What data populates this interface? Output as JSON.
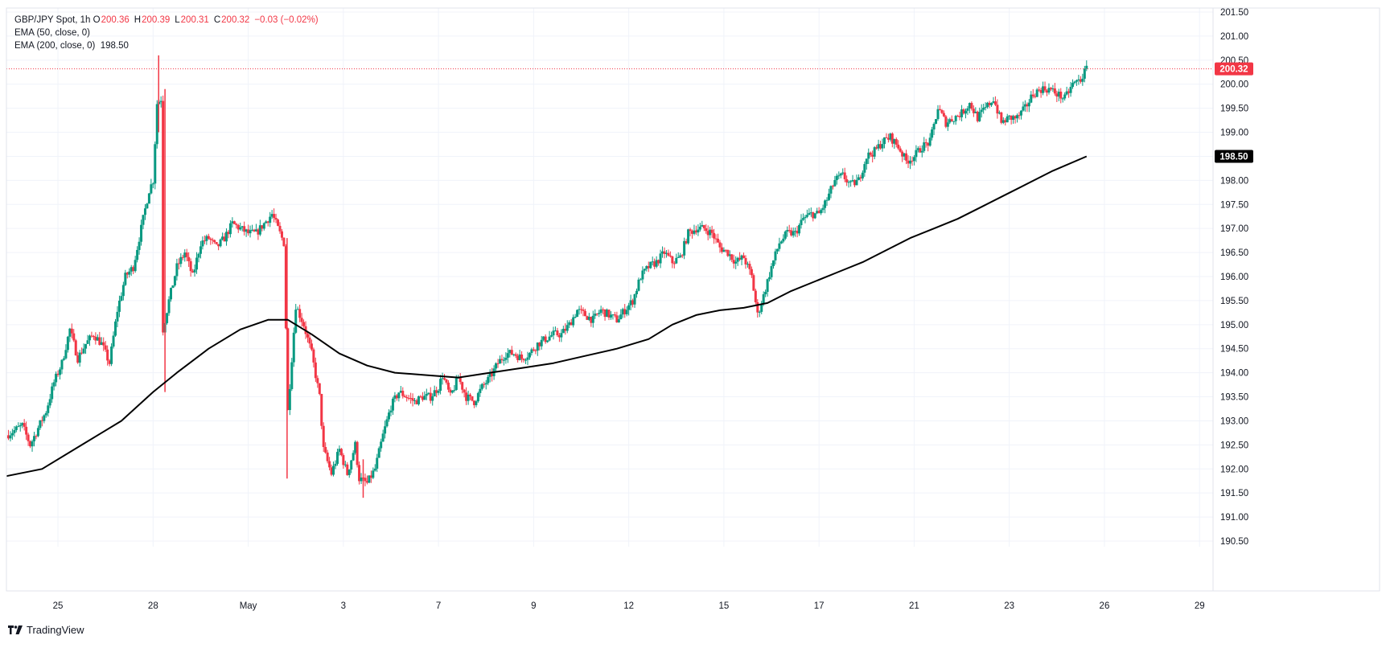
{
  "legend": {
    "symbol": "GBP/JPY Spot",
    "interval": "1h",
    "open_label": "O",
    "open": "200.36",
    "high_label": "H",
    "high": "200.39",
    "low_label": "L",
    "low": "200.31",
    "close_label": "C",
    "close": "200.32",
    "change": "−0.03 (−0.02%)",
    "ema50": "EMA (50, close, 0)",
    "ema200": "EMA (200, close, 0)",
    "ema200_value": "198.50"
  },
  "price_badges": {
    "last": "200.32",
    "ema200": "198.50"
  },
  "branding": {
    "name": "TradingView"
  },
  "colors": {
    "up": "#089981",
    "down": "#f23645",
    "ema": "#000000",
    "grid": "#f0f3fa"
  },
  "chart_data": {
    "type": "candlestick",
    "interval": "1h",
    "y_ticks": [
      "190.50",
      "191.00",
      "191.50",
      "192.00",
      "192.50",
      "193.00",
      "193.50",
      "194.00",
      "194.50",
      "195.00",
      "195.50",
      "196.00",
      "196.50",
      "197.00",
      "197.50",
      "198.00",
      "198.50",
      "199.00",
      "199.50",
      "200.00",
      "200.50",
      "201.00",
      "201.50"
    ],
    "ylim": [
      190.5,
      201.5
    ],
    "x_ticks": [
      {
        "label": "25",
        "hours": 39
      },
      {
        "label": "28",
        "hours": 63
      },
      {
        "label": "May",
        "hours": 87
      },
      {
        "label": "3",
        "hours": 111
      },
      {
        "label": "7",
        "hours": 135
      },
      {
        "label": "9",
        "hours": 159
      },
      {
        "label": "12",
        "hours": 183
      },
      {
        "label": "15",
        "hours": 207
      },
      {
        "label": "17",
        "hours": 231
      },
      {
        "label": "21",
        "hours": 255
      },
      {
        "label": "23",
        "hours": 279
      },
      {
        "label": "26",
        "hours": 303
      },
      {
        "label": "29",
        "hours": 327
      }
    ],
    "x_range_hours": [
      26,
      330
    ],
    "close_path": [
      [
        26,
        192.7
      ],
      [
        30,
        192.9
      ],
      [
        32,
        192.5
      ],
      [
        36,
        193.2
      ],
      [
        38,
        193.8
      ],
      [
        40,
        194.2
      ],
      [
        42,
        194.9
      ],
      [
        44,
        194.3
      ],
      [
        46,
        194.6
      ],
      [
        48,
        194.8
      ],
      [
        50,
        194.6
      ],
      [
        52,
        194.2
      ],
      [
        54,
        195.3
      ],
      [
        56,
        196.0
      ],
      [
        58,
        196.2
      ],
      [
        60,
        197.0
      ],
      [
        62,
        197.8
      ],
      [
        63,
        198.0
      ],
      [
        64,
        199.6
      ],
      [
        65,
        199.7
      ],
      [
        65.5,
        194.9
      ],
      [
        67,
        195.5
      ],
      [
        69,
        196.2
      ],
      [
        71,
        196.5
      ],
      [
        73,
        196.0
      ],
      [
        75,
        196.7
      ],
      [
        77,
        196.8
      ],
      [
        79,
        196.6
      ],
      [
        81,
        196.8
      ],
      [
        83,
        197.1
      ],
      [
        85,
        197.0
      ],
      [
        87,
        196.9
      ],
      [
        89,
        196.9
      ],
      [
        91,
        197.1
      ],
      [
        93,
        197.3
      ],
      [
        95,
        196.9
      ],
      [
        96,
        196.7
      ],
      [
        97,
        193.2
      ],
      [
        99,
        195.4
      ],
      [
        101,
        195.0
      ],
      [
        103,
        194.4
      ],
      [
        105,
        193.5
      ],
      [
        106,
        192.4
      ],
      [
        108,
        191.9
      ],
      [
        110,
        192.4
      ],
      [
        112,
        191.9
      ],
      [
        114,
        192.5
      ],
      [
        115,
        191.8
      ],
      [
        117,
        191.7
      ],
      [
        119,
        192.0
      ],
      [
        121,
        192.7
      ],
      [
        123,
        193.3
      ],
      [
        125,
        193.6
      ],
      [
        127,
        193.5
      ],
      [
        129,
        193.4
      ],
      [
        131,
        193.5
      ],
      [
        133,
        193.5
      ],
      [
        135,
        193.7
      ],
      [
        136,
        193.95
      ],
      [
        138,
        193.5
      ],
      [
        140,
        193.9
      ],
      [
        142,
        193.5
      ],
      [
        144,
        193.4
      ],
      [
        146,
        193.7
      ],
      [
        148,
        193.9
      ],
      [
        150,
        194.2
      ],
      [
        152,
        194.4
      ],
      [
        154,
        194.4
      ],
      [
        156,
        194.3
      ],
      [
        158,
        194.4
      ],
      [
        160,
        194.6
      ],
      [
        162,
        194.7
      ],
      [
        164,
        194.8
      ],
      [
        166,
        194.8
      ],
      [
        168,
        195.0
      ],
      [
        170,
        195.3
      ],
      [
        172,
        195.2
      ],
      [
        174,
        195.1
      ],
      [
        176,
        195.3
      ],
      [
        178,
        195.2
      ],
      [
        180,
        195.1
      ],
      [
        182,
        195.3
      ],
      [
        184,
        195.5
      ],
      [
        186,
        196.0
      ],
      [
        188,
        196.2
      ],
      [
        190,
        196.3
      ],
      [
        192,
        196.5
      ],
      [
        194,
        196.3
      ],
      [
        196,
        196.4
      ],
      [
        198,
        196.9
      ],
      [
        200,
        197.0
      ],
      [
        202,
        197.0
      ],
      [
        204,
        196.9
      ],
      [
        206,
        196.6
      ],
      [
        208,
        196.5
      ],
      [
        210,
        196.3
      ],
      [
        212,
        196.4
      ],
      [
        214,
        196.0
      ],
      [
        215.5,
        195.2
      ],
      [
        217,
        195.6
      ],
      [
        219,
        196.2
      ],
      [
        221,
        196.7
      ],
      [
        223,
        196.9
      ],
      [
        225,
        196.9
      ],
      [
        227,
        197.2
      ],
      [
        229,
        197.3
      ],
      [
        231,
        197.3
      ],
      [
        233,
        197.6
      ],
      [
        235,
        198.0
      ],
      [
        237,
        198.1
      ],
      [
        239,
        197.9
      ],
      [
        241,
        198.0
      ],
      [
        243,
        198.5
      ],
      [
        245,
        198.6
      ],
      [
        247,
        198.8
      ],
      [
        249,
        198.9
      ],
      [
        251,
        198.7
      ],
      [
        253,
        198.4
      ],
      [
        255,
        198.5
      ],
      [
        257,
        198.7
      ],
      [
        259,
        198.8
      ],
      [
        261,
        199.5
      ],
      [
        263,
        199.2
      ],
      [
        265,
        199.3
      ],
      [
        267,
        199.4
      ],
      [
        269,
        199.6
      ],
      [
        271,
        199.3
      ],
      [
        273,
        199.5
      ],
      [
        275,
        199.7
      ],
      [
        277,
        199.2
      ],
      [
        279,
        199.3
      ],
      [
        281,
        199.3
      ],
      [
        283,
        199.5
      ],
      [
        285,
        199.8
      ],
      [
        287,
        199.9
      ],
      [
        289,
        199.9
      ],
      [
        291,
        199.8
      ],
      [
        293,
        199.7
      ],
      [
        295,
        200.0
      ],
      [
        297,
        200.1
      ],
      [
        298.5,
        200.32
      ]
    ],
    "spikes": [
      {
        "hours": 64.4,
        "high": 200.6,
        "low": 199.0
      },
      {
        "hours": 66,
        "high": 199.9,
        "low": 193.6
      },
      {
        "hours": 96.8,
        "high": 196.8,
        "low": 191.8
      },
      {
        "hours": 116,
        "high": 192.2,
        "low": 191.4
      }
    ],
    "ema200": [
      [
        26,
        191.85
      ],
      [
        35,
        192.0
      ],
      [
        45,
        192.5
      ],
      [
        55,
        193.0
      ],
      [
        63,
        193.6
      ],
      [
        69,
        194.0
      ],
      [
        77,
        194.5
      ],
      [
        85,
        194.9
      ],
      [
        92,
        195.1
      ],
      [
        97,
        195.1
      ],
      [
        103,
        194.8
      ],
      [
        110,
        194.4
      ],
      [
        117,
        194.15
      ],
      [
        124,
        194.0
      ],
      [
        132,
        193.95
      ],
      [
        140,
        193.9
      ],
      [
        148,
        194.0
      ],
      [
        156,
        194.1
      ],
      [
        164,
        194.2
      ],
      [
        172,
        194.35
      ],
      [
        180,
        194.5
      ],
      [
        188,
        194.7
      ],
      [
        194,
        195.0
      ],
      [
        200,
        195.2
      ],
      [
        206,
        195.3
      ],
      [
        212,
        195.35
      ],
      [
        218,
        195.45
      ],
      [
        224,
        195.7
      ],
      [
        230,
        195.9
      ],
      [
        236,
        196.1
      ],
      [
        242,
        196.3
      ],
      [
        248,
        196.55
      ],
      [
        254,
        196.8
      ],
      [
        260,
        197.0
      ],
      [
        266,
        197.2
      ],
      [
        272,
        197.45
      ],
      [
        278,
        197.7
      ],
      [
        284,
        197.95
      ],
      [
        290,
        198.2
      ],
      [
        298.5,
        198.5
      ]
    ],
    "last_price": 200.32,
    "ema200_value": 198.5
  }
}
